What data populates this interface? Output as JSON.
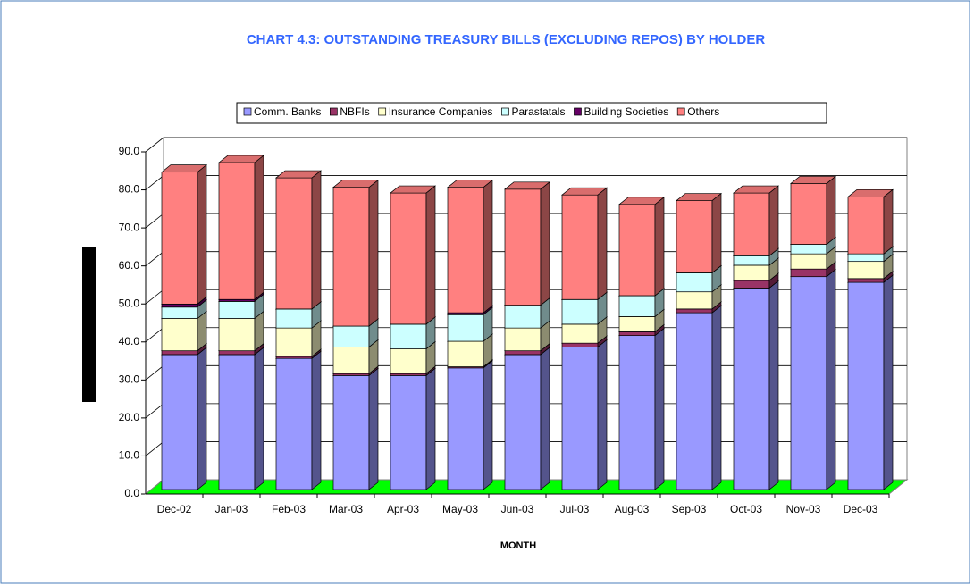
{
  "chart_data": {
    "type": "bar",
    "stacked": true,
    "title": "CHART 4.3:  OUTSTANDING TREASURY BILLS (EXCLUDING REPOS)  BY HOLDER",
    "x_label": "MONTH",
    "categories": [
      "Dec-02",
      "Jan-03",
      "Feb-03",
      "Mar-03",
      "Apr-03",
      "May-03",
      "Jun-03",
      "Jul-03",
      "Aug-03",
      "Sep-03",
      "Oct-03",
      "Nov-03",
      "Dec-03"
    ],
    "series": [
      {
        "name": "Comm. Banks",
        "color": "#9999ff",
        "values": [
          35.5,
          35.5,
          34.5,
          30.0,
          30.0,
          32.0,
          35.5,
          37.5,
          40.5,
          46.5,
          53.0,
          56.0,
          54.5
        ]
      },
      {
        "name": "NBFIs",
        "color": "#993366",
        "values": [
          1.0,
          1.0,
          0.5,
          0.5,
          0.5,
          0.3,
          1.0,
          1.0,
          1.0,
          1.0,
          2.0,
          2.0,
          1.0
        ]
      },
      {
        "name": "Insurance Companies",
        "color": "#ffffcc",
        "values": [
          8.5,
          8.5,
          7.5,
          7.0,
          6.5,
          6.7,
          6.0,
          5.0,
          4.0,
          4.5,
          4.0,
          4.0,
          4.5
        ]
      },
      {
        "name": "Parastatals",
        "color": "#ccffff",
        "values": [
          3.0,
          4.5,
          5.0,
          5.5,
          6.5,
          7.0,
          6.0,
          6.5,
          5.5,
          5.0,
          2.5,
          2.5,
          2.0
        ]
      },
      {
        "name": "Building Societies",
        "color": "#660066",
        "values": [
          0.8,
          0.5,
          0,
          0,
          0,
          0.5,
          0,
          0,
          0,
          0,
          0,
          0,
          0
        ]
      },
      {
        "name": "Others",
        "color": "#ff8080",
        "values": [
          34.7,
          36.0,
          34.5,
          36.5,
          34.5,
          33.0,
          30.5,
          27.5,
          24.0,
          19.0,
          16.5,
          16.0,
          15.0
        ]
      }
    ],
    "ylim": [
      0,
      90
    ],
    "yticks": [
      {
        "value": 0,
        "label": "0.0"
      },
      {
        "value": 10,
        "label": "10.0"
      },
      {
        "value": 20,
        "label": "20.0"
      },
      {
        "value": 30,
        "label": "30.0"
      },
      {
        "value": 40,
        "label": "40.0"
      },
      {
        "value": 50,
        "label": "50.0"
      },
      {
        "value": 60,
        "label": "60.0"
      },
      {
        "value": 70,
        "label": "70.0"
      },
      {
        "value": 80,
        "label": "80.0"
      },
      {
        "value": 90,
        "label": "90.0"
      }
    ],
    "grid": true,
    "legend": "top"
  }
}
